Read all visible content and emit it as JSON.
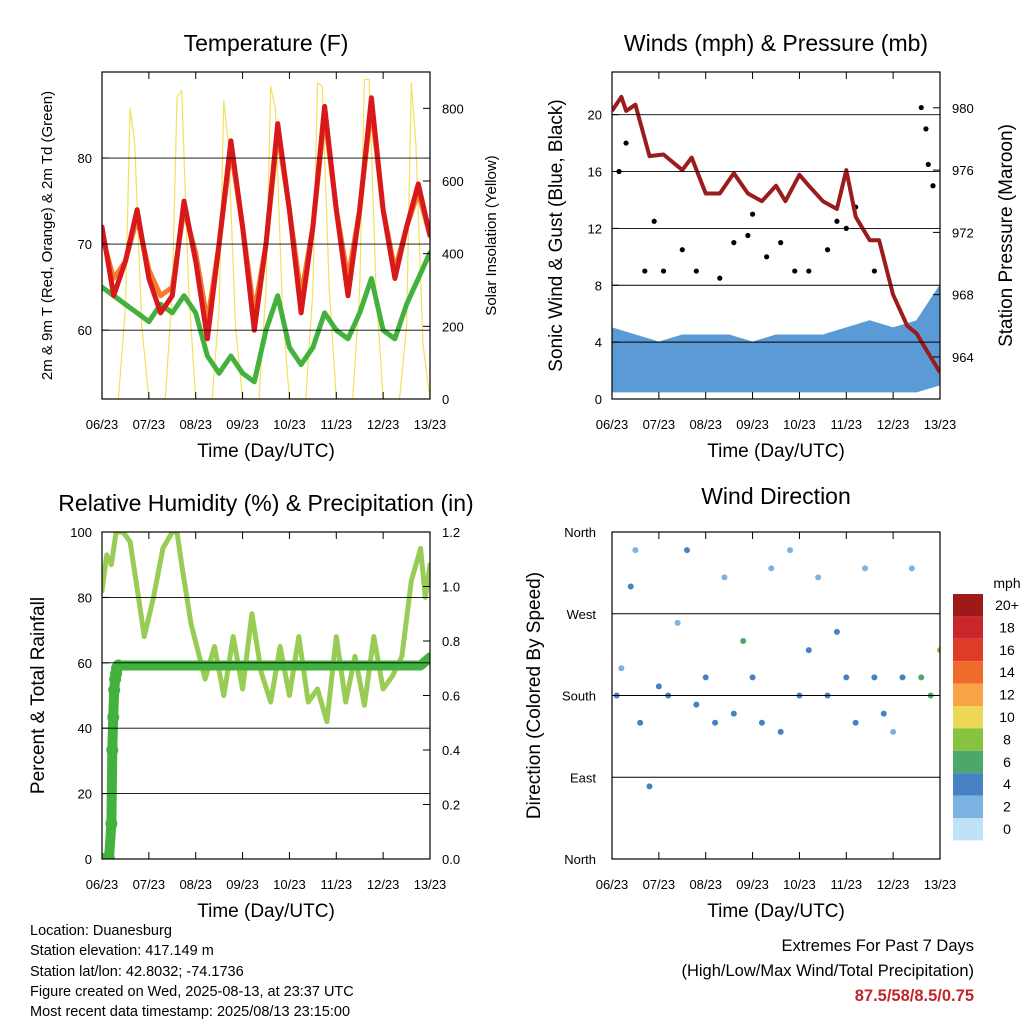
{
  "chart_data": [
    {
      "type": "line",
      "title": "Temperature (F)",
      "xlabel": "Time (Day/UTC)",
      "ylabel": "2m & 9m T (Red, Orange) & 2m Td (Green)",
      "y2label": "Solar Insolation (Yellow)",
      "x_ticks": [
        "06/23",
        "07/23",
        "08/23",
        "09/23",
        "10/23",
        "11/23",
        "12/23",
        "13/23"
      ],
      "ylim": [
        52,
        90
      ],
      "y_ticks": [
        60,
        70,
        80
      ],
      "y2lim": [
        0,
        900
      ],
      "y2_ticks": [
        0,
        200,
        400,
        600,
        800
      ],
      "grid": "horizontal",
      "series": [
        {
          "name": "2m T",
          "color": "#d7191c",
          "axis": "left",
          "x": [
            0,
            0.25,
            0.5,
            0.75,
            1,
            1.25,
            1.5,
            1.75,
            2,
            2.25,
            2.5,
            2.75,
            3,
            3.25,
            3.5,
            3.75,
            4,
            4.25,
            4.5,
            4.75,
            5,
            5.25,
            5.5,
            5.75,
            6,
            6.25,
            6.5,
            6.75,
            7
          ],
          "y": [
            72,
            64,
            68,
            74,
            66,
            62,
            64,
            75,
            68,
            59,
            70,
            82,
            72,
            60,
            70,
            84,
            74,
            62,
            72,
            86,
            74,
            64,
            74,
            87,
            74,
            66,
            72,
            77,
            71
          ]
        },
        {
          "name": "9m T",
          "color": "#f57c2a",
          "axis": "left",
          "x": [
            0,
            0.25,
            0.5,
            0.75,
            1,
            1.25,
            1.5,
            1.75,
            2,
            2.25,
            2.5,
            2.75,
            3,
            3.25,
            3.5,
            3.75,
            4,
            4.25,
            4.5,
            4.75,
            5,
            5.25,
            5.5,
            5.75,
            6,
            6.25,
            6.5,
            6.75,
            7
          ],
          "y": [
            71,
            66,
            68,
            73,
            67,
            64,
            65,
            74,
            69,
            61,
            70,
            81,
            72,
            62,
            70,
            83,
            74,
            64,
            72,
            85,
            74,
            66,
            74,
            86,
            74,
            67,
            72,
            76,
            71
          ]
        },
        {
          "name": "2m Td",
          "color": "#43b13d",
          "axis": "left",
          "x": [
            0,
            0.25,
            0.5,
            0.75,
            1,
            1.25,
            1.5,
            1.75,
            2,
            2.25,
            2.5,
            2.75,
            3,
            3.25,
            3.5,
            3.75,
            4,
            4.25,
            4.5,
            4.75,
            5,
            5.25,
            5.5,
            5.75,
            6,
            6.25,
            6.5,
            6.75,
            7
          ],
          "y": [
            65,
            64,
            63,
            62,
            61,
            63,
            62,
            64,
            62,
            57,
            55,
            57,
            55,
            54,
            60,
            64,
            58,
            56,
            58,
            62,
            60,
            59,
            62,
            66,
            60,
            59,
            63,
            66,
            69
          ]
        },
        {
          "name": "Solar Insolation",
          "color": "#f3e15a",
          "axis": "right",
          "x": [
            0,
            0.35,
            0.5,
            0.6,
            0.7,
            0.85,
            1,
            1.35,
            1.5,
            1.6,
            1.7,
            1.85,
            2,
            2.35,
            2.5,
            2.6,
            2.7,
            2.85,
            3,
            3.35,
            3.5,
            3.6,
            3.7,
            3.85,
            4,
            4.35,
            4.5,
            4.6,
            4.7,
            4.85,
            5,
            5.35,
            5.5,
            5.6,
            5.7,
            5.85,
            6,
            6.35,
            6.5,
            6.6,
            6.7,
            6.85,
            7
          ],
          "y": [
            0,
            0,
            250,
            800,
            700,
            200,
            0,
            0,
            300,
            830,
            850,
            300,
            0,
            0,
            250,
            820,
            700,
            200,
            0,
            0,
            300,
            860,
            800,
            250,
            0,
            0,
            300,
            870,
            860,
            300,
            0,
            0,
            300,
            880,
            880,
            300,
            0,
            0,
            200,
            870,
            700,
            150,
            0
          ]
        }
      ]
    },
    {
      "type": "scatter",
      "title": "Winds (mph) & Pressure (mb)",
      "xlabel": "Time (Day/UTC)",
      "ylabel": "Sonic Wind & Gust (Blue, Black)",
      "y2label": "Station Pressure (Maroon)",
      "x_ticks": [
        "06/23",
        "07/23",
        "08/23",
        "09/23",
        "10/23",
        "11/23",
        "12/23",
        "13/23"
      ],
      "ylim": [
        0,
        23
      ],
      "y_ticks": [
        0,
        4,
        8,
        12,
        16,
        20
      ],
      "y2lim": [
        961.3,
        982.3
      ],
      "y2_ticks": [
        964,
        968,
        972,
        976,
        980
      ],
      "grid": "horizontal",
      "series": [
        {
          "name": "Station Pressure",
          "color": "#9b1c1c",
          "type": "line",
          "axis": "right",
          "x": [
            0,
            0.2,
            0.3,
            0.5,
            0.8,
            1.1,
            1.5,
            1.7,
            2,
            2.3,
            2.6,
            2.9,
            3.2,
            3.5,
            3.7,
            4,
            4.2,
            4.5,
            4.8,
            5,
            5.2,
            5.5,
            5.7,
            6,
            6.3,
            6.5,
            6.7,
            7
          ],
          "y": [
            979.8,
            980.7,
            979.8,
            980.2,
            976.9,
            977.0,
            976.0,
            976.8,
            974.5,
            974.5,
            975.8,
            974.5,
            974.0,
            975.0,
            974.0,
            975.7,
            975.0,
            974.0,
            973.5,
            976.0,
            973.0,
            971.5,
            971.5,
            968.0,
            966.0,
            965.5,
            964.5,
            963.0
          ]
        },
        {
          "name": "Sonic Wind",
          "color": "#5b9bd5",
          "type": "band",
          "axis": "left",
          "x": [
            0,
            0.5,
            1,
            1.5,
            2,
            2.5,
            3,
            3.5,
            4,
            4.5,
            5,
            5.5,
            6,
            6.5,
            7
          ],
          "y_low": [
            0.5,
            0.5,
            0.5,
            0.5,
            0.5,
            0.5,
            0.5,
            0.5,
            0.5,
            0.5,
            0.5,
            0.5,
            0.5,
            0.5,
            1.0
          ],
          "y_high": [
            5,
            4.5,
            4,
            4.5,
            4.5,
            4.5,
            4,
            4.5,
            4.5,
            4.5,
            5,
            5.5,
            5,
            5.5,
            8
          ]
        },
        {
          "name": "Gust",
          "color": "#000000",
          "type": "scatter",
          "axis": "left",
          "x": [
            0.15,
            0.3,
            0.7,
            0.9,
            1.1,
            1.5,
            1.8,
            2.3,
            2.6,
            2.9,
            3.0,
            3.3,
            3.6,
            3.9,
            4.2,
            4.6,
            4.8,
            5.0,
            5.2,
            5.6,
            6.6,
            6.7,
            6.75,
            6.85
          ],
          "y": [
            16,
            18,
            9,
            12.5,
            9,
            10.5,
            9,
            8.5,
            11,
            11.5,
            13,
            10,
            11,
            9,
            9,
            10.5,
            12.5,
            12,
            13.5,
            9,
            20.5,
            19,
            16.5,
            15
          ]
        }
      ]
    },
    {
      "type": "line",
      "title": "Relative Humidity (%) & Precipitation (in)",
      "xlabel": "Time (Day/UTC)",
      "ylabel": "Percent & Total Rainfall",
      "x_ticks": [
        "06/23",
        "07/23",
        "08/23",
        "09/23",
        "10/23",
        "11/23",
        "12/23",
        "13/23"
      ],
      "ylim": [
        0,
        100
      ],
      "y_ticks": [
        0,
        20,
        40,
        60,
        80,
        100
      ],
      "y2lim": [
        0,
        1.2
      ],
      "y2_ticks": [
        "0.0",
        "0.2",
        "0.4",
        "0.6",
        "0.8",
        "1.0",
        "1.2"
      ],
      "grid": "horizontal",
      "series": [
        {
          "name": "Relative Humidity",
          "color": "#99cc55",
          "axis": "left",
          "x": [
            0,
            0.1,
            0.2,
            0.3,
            0.45,
            0.6,
            0.8,
            0.9,
            1.1,
            1.3,
            1.5,
            1.6,
            1.7,
            1.9,
            2.2,
            2.4,
            2.6,
            2.8,
            3.0,
            3.2,
            3.4,
            3.6,
            3.8,
            4.0,
            4.2,
            4.4,
            4.6,
            4.8,
            5.0,
            5.2,
            5.4,
            5.6,
            5.8,
            6.0,
            6.2,
            6.4,
            6.6,
            6.8,
            6.9,
            7.0
          ],
          "y": [
            82,
            93,
            90,
            100,
            100,
            97,
            78,
            68,
            80,
            95,
            100,
            100,
            90,
            72,
            55,
            65,
            50,
            68,
            52,
            75,
            57,
            48,
            65,
            50,
            68,
            48,
            52,
            42,
            68,
            48,
            62,
            47,
            68,
            52,
            56,
            62,
            85,
            95,
            80,
            90
          ]
        },
        {
          "name": "Total Rainfall",
          "color": "#43b13d",
          "axis": "right",
          "x": [
            0,
            0.05,
            0.1,
            0.15,
            0.2,
            0.22,
            0.24,
            0.26,
            0.28,
            0.3,
            0.32,
            0.35,
            6.8,
            7.0
          ],
          "y": [
            0,
            0,
            0,
            0,
            0.13,
            0.4,
            0.52,
            0.62,
            0.66,
            0.68,
            0.7,
            0.71,
            0.71,
            0.74
          ]
        }
      ]
    },
    {
      "type": "scatter",
      "title": "Wind Direction",
      "xlabel": "Time (Day/UTC)",
      "ylabel": "Direction (Colored By Speed)",
      "x_ticks": [
        "06/23",
        "07/23",
        "08/23",
        "09/23",
        "10/23",
        "11/23",
        "12/23",
        "13/23"
      ],
      "y_ticks": [
        "North",
        "East",
        "South",
        "West",
        "North"
      ],
      "ylim": [
        0,
        360
      ],
      "grid": "horizontal",
      "legend": {
        "title": "mph",
        "labels": [
          "20+",
          "18",
          "16",
          "14",
          "12",
          "10",
          "8",
          "6",
          "4",
          "2",
          "0"
        ],
        "colors": [
          "#9e1a1a",
          "#c9252a",
          "#df3b27",
          "#ef6b2c",
          "#f7a447",
          "#ecd854",
          "#88c33f",
          "#4ba86a",
          "#4781c2",
          "#7cb3e3",
          "#bfe2f7"
        ],
        "placement": "right"
      },
      "series": [
        {
          "name": "Wind Direction",
          "x": [
            0.1,
            0.2,
            0.4,
            0.5,
            0.6,
            0.8,
            1.0,
            1.2,
            1.4,
            1.6,
            1.8,
            2.0,
            2.2,
            2.4,
            2.6,
            2.8,
            3.0,
            3.2,
            3.4,
            3.6,
            3.8,
            4.0,
            4.2,
            4.4,
            4.6,
            4.8,
            5.0,
            5.2,
            5.4,
            5.6,
            5.8,
            6.0,
            6.2,
            6.4,
            6.6,
            6.8,
            7.0
          ],
          "y": [
            180,
            210,
            300,
            340,
            150,
            80,
            190,
            180,
            260,
            340,
            170,
            200,
            150,
            310,
            160,
            240,
            200,
            150,
            320,
            140,
            340,
            180,
            230,
            310,
            180,
            250,
            200,
            150,
            320,
            200,
            160,
            140,
            200,
            320,
            200,
            180,
            230
          ],
          "speed": [
            3,
            2,
            3,
            2,
            4,
            3,
            4,
            3,
            2,
            3,
            4,
            4,
            3,
            2,
            4,
            6,
            3,
            4,
            2,
            3,
            2,
            4,
            3,
            2,
            4,
            4,
            3,
            4,
            2,
            3,
            4,
            2,
            3,
            2,
            5,
            6,
            7
          ]
        }
      ]
    }
  ],
  "info": {
    "location": "Location: Duanesburg",
    "elevation": "Station elevation: 417.149 m",
    "latlon": "Station lat/lon: 42.8032; -74.1736",
    "created": "Figure created on Wed, 2025-08-13, at 23:37 UTC",
    "recent": "Most recent data timestamp: 2025/08/13 23:15:00"
  },
  "extremes": {
    "line1": "Extremes For Past 7 Days",
    "line2": "(High/Low/Max Wind/Total Precipitation)",
    "value": "87.5/58/8.5/0.75"
  }
}
